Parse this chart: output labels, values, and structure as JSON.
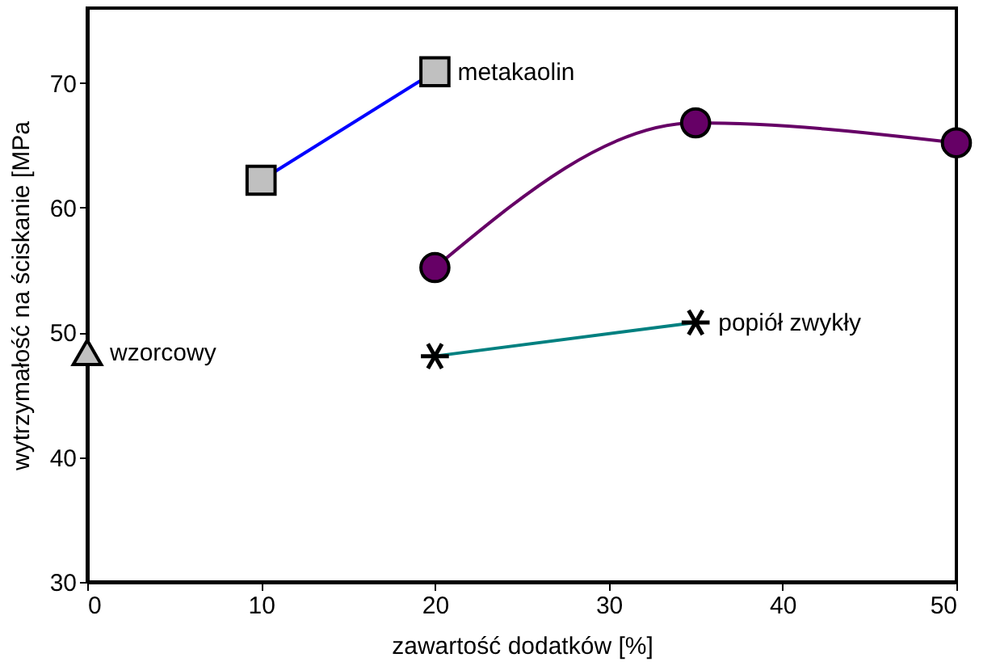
{
  "chart_data": {
    "type": "line",
    "xlabel": "zawartość dodatków [%]",
    "ylabel": "wytrzymałość na ściskanie [MPa",
    "xlim": [
      0,
      50
    ],
    "ylim": [
      30,
      76
    ],
    "xticks": [
      0,
      10,
      20,
      30,
      40,
      50
    ],
    "yticks": [
      30,
      40,
      50,
      60,
      70
    ],
    "grid": false,
    "line_style": "solid",
    "series": [
      {
        "name": "wzorcowy",
        "marker": "triangle",
        "colors": [
          "#c0c0c0"
        ],
        "x": [
          0
        ],
        "values": [
          48.4
        ]
      },
      {
        "name": "metakaolin",
        "marker": "square",
        "color": "#0000ff",
        "colors": [
          "#c0c0c0",
          "#c0c0c0"
        ],
        "x": [
          10,
          20
        ],
        "values": [
          62.2,
          70.9
        ]
      },
      {
        "marker": "circle",
        "color": "#660066",
        "colors": [
          "#660066",
          "#660066",
          "#660066"
        ],
        "x": [
          20,
          35,
          50
        ],
        "values": [
          55.2,
          66.8,
          65.2
        ]
      },
      {
        "name": "popiół zwykły",
        "marker": "cross",
        "color": "#008080",
        "colors": [
          "#000000",
          "#000000"
        ],
        "x": [
          20,
          35
        ],
        "values": [
          48.1,
          50.8
        ]
      }
    ]
  }
}
